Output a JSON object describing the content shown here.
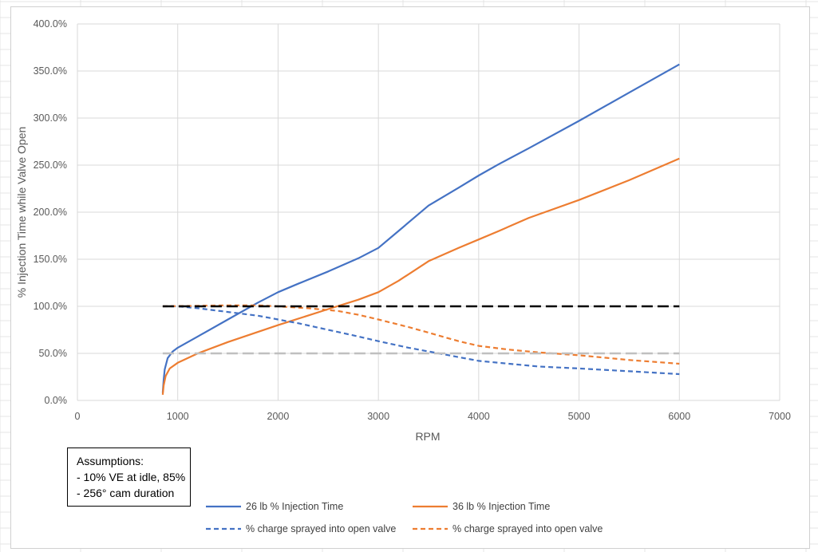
{
  "chart_data": {
    "type": "line",
    "title": "",
    "xlabel": "RPM",
    "ylabel": "% Injection Time while Valve Open",
    "xlim": [
      0,
      7000
    ],
    "ylim": [
      0,
      400
    ],
    "xticks": [
      0,
      1000,
      2000,
      3000,
      4000,
      5000,
      6000,
      7000
    ],
    "yticks": [
      0,
      50,
      100,
      150,
      200,
      250,
      300,
      350,
      400
    ],
    "ytick_labels": [
      "0.0%",
      "50.0%",
      "100.0%",
      "150.0%",
      "200.0%",
      "250.0%",
      "300.0%",
      "350.0%",
      "400.0%"
    ],
    "grid": true,
    "legend_position": "bottom",
    "series": [
      {
        "name": "26 lb % Injection Time",
        "color": "#4472C4",
        "style": "solid",
        "legend": true,
        "points": [
          [
            850,
            8
          ],
          [
            860,
            22
          ],
          [
            870,
            33
          ],
          [
            900,
            45
          ],
          [
            950,
            52
          ],
          [
            1000,
            56
          ],
          [
            1200,
            68
          ],
          [
            1500,
            86
          ],
          [
            1800,
            104
          ],
          [
            2000,
            115
          ],
          [
            2200,
            124
          ],
          [
            2500,
            137
          ],
          [
            2800,
            151
          ],
          [
            3000,
            162
          ],
          [
            3200,
            180
          ],
          [
            3500,
            207
          ],
          [
            3800,
            226
          ],
          [
            4000,
            239
          ],
          [
            4200,
            251
          ],
          [
            4500,
            268
          ],
          [
            5000,
            297
          ],
          [
            5500,
            327
          ],
          [
            6000,
            357
          ]
        ]
      },
      {
        "name": "36 lb % Injection Time",
        "color": "#ED7D31",
        "style": "solid",
        "legend": true,
        "points": [
          [
            850,
            6
          ],
          [
            860,
            16
          ],
          [
            880,
            26
          ],
          [
            920,
            34
          ],
          [
            1000,
            40
          ],
          [
            1200,
            50
          ],
          [
            1500,
            62
          ],
          [
            2000,
            80
          ],
          [
            2500,
            97
          ],
          [
            2800,
            107
          ],
          [
            3000,
            115
          ],
          [
            3200,
            127
          ],
          [
            3500,
            148
          ],
          [
            3800,
            162
          ],
          [
            4000,
            171
          ],
          [
            4200,
            180
          ],
          [
            4500,
            194
          ],
          [
            5000,
            213
          ],
          [
            5500,
            234
          ],
          [
            6000,
            257
          ]
        ]
      },
      {
        "name": "% charge sprayed into open valve",
        "color": "#4472C4",
        "style": "dashed",
        "legend": true,
        "points": [
          [
            850,
            100
          ],
          [
            1000,
            100
          ],
          [
            1200,
            98
          ],
          [
            1500,
            94
          ],
          [
            1800,
            90
          ],
          [
            2000,
            86
          ],
          [
            2200,
            82
          ],
          [
            2500,
            75
          ],
          [
            2800,
            68
          ],
          [
            3000,
            63
          ],
          [
            3300,
            56
          ],
          [
            3500,
            52
          ],
          [
            3800,
            46
          ],
          [
            4000,
            42
          ],
          [
            4300,
            39
          ],
          [
            4600,
            36
          ],
          [
            5000,
            34
          ],
          [
            5500,
            31
          ],
          [
            6000,
            28
          ]
        ]
      },
      {
        "name": "% charge sprayed into open valve",
        "color": "#ED7D31",
        "style": "dashed",
        "legend": true,
        "points": [
          [
            850,
            100
          ],
          [
            1500,
            101
          ],
          [
            1800,
            101
          ],
          [
            2000,
            100
          ],
          [
            2300,
            98
          ],
          [
            2600,
            95
          ],
          [
            2800,
            91
          ],
          [
            3000,
            86
          ],
          [
            3300,
            78
          ],
          [
            3500,
            72
          ],
          [
            3800,
            63
          ],
          [
            4000,
            58
          ],
          [
            4300,
            54
          ],
          [
            4600,
            51
          ],
          [
            5000,
            48
          ],
          [
            5500,
            43
          ],
          [
            6000,
            39
          ]
        ]
      },
      {
        "color": "#000000",
        "style": "dashed",
        "legend": false,
        "points": [
          [
            850,
            100
          ],
          [
            6000,
            100
          ]
        ]
      },
      {
        "color": "#BFBFBF",
        "style": "dashed",
        "legend": false,
        "points": [
          [
            850,
            50
          ],
          [
            6000,
            50
          ]
        ]
      }
    ]
  },
  "annotation": {
    "lines": [
      "Assumptions:",
      "- 10% VE at idle, 85%",
      "- 256° cam duration"
    ]
  }
}
